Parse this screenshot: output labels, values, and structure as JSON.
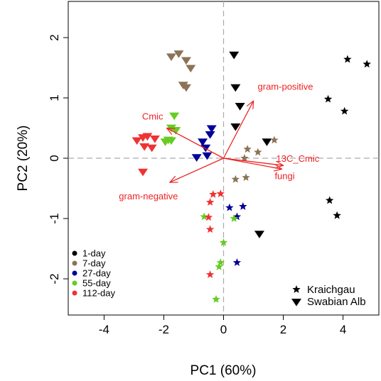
{
  "chart_data": {
    "type": "scatter",
    "title": "",
    "xlabel": "PC1 (60%)",
    "ylabel": "PC2 (20%)",
    "xlim": [
      -5.2,
      5.2
    ],
    "ylim": [
      -2.6,
      2.6
    ],
    "x_ticks": [
      "-4",
      "-2",
      "0",
      "2",
      "4"
    ],
    "x_tick_values": [
      -4,
      -2,
      0,
      2,
      4
    ],
    "y_ticks": [
      "-2",
      "-1",
      "0",
      "1",
      "2"
    ],
    "y_tick_values": [
      -2,
      -1,
      0,
      1,
      2
    ],
    "grid": false,
    "reference_lines": [
      0,
      0
    ],
    "colors": {
      "1-day": "#000000",
      "7-day": "#8b7355",
      "27-day": "#000099",
      "55-day": "#66cc22",
      "112-day": "#ee3333",
      "arrow": "#ee2222",
      "reference": "#aaaaaa"
    },
    "legend_time": {
      "placement": "bottom-left",
      "entries": [
        "1-day",
        "7-day",
        "27-day",
        "55-day",
        "112-day"
      ]
    },
    "legend_site": {
      "placement": "bottom-right",
      "entries": [
        {
          "label": "Kraichgau",
          "shape": "star"
        },
        {
          "label": "Swabian Alb",
          "shape": "triangle-down"
        }
      ]
    },
    "series": [
      {
        "group": "1-day",
        "site": "Kraichgau",
        "points": [
          [
            4.15,
            1.64
          ],
          [
            4.8,
            1.56
          ],
          [
            3.5,
            0.98
          ],
          [
            4.05,
            0.78
          ],
          [
            3.55,
            -0.7
          ],
          [
            3.8,
            -0.95
          ]
        ]
      },
      {
        "group": "1-day",
        "site": "Swabian Alb",
        "points": [
          [
            0.35,
            1.72
          ],
          [
            0.4,
            1.18
          ],
          [
            0.55,
            0.87
          ],
          [
            0.4,
            0.53
          ],
          [
            1.45,
            0.28
          ],
          [
            1.2,
            -1.25
          ]
        ]
      },
      {
        "group": "7-day",
        "site": "Kraichgau",
        "points": [
          [
            1.7,
            0.3
          ],
          [
            0.8,
            0.15
          ],
          [
            1.15,
            0.1
          ],
          [
            0.7,
            0.0
          ],
          [
            0.4,
            -0.35
          ],
          [
            0.75,
            -0.32
          ]
        ]
      },
      {
        "group": "7-day",
        "site": "Swabian Alb",
        "points": [
          [
            -1.75,
            1.69
          ],
          [
            -1.5,
            1.74
          ],
          [
            -1.25,
            1.63
          ],
          [
            -1.1,
            1.5
          ],
          [
            -1.35,
            1.22
          ],
          [
            -1.25,
            1.18
          ]
        ]
      },
      {
        "group": "27-day",
        "site": "Kraichgau",
        "points": [
          [
            0.2,
            -0.82
          ],
          [
            0.65,
            -0.8
          ],
          [
            0.45,
            -0.97
          ],
          [
            0.45,
            -1.73
          ]
        ]
      },
      {
        "group": "27-day",
        "site": "Swabian Alb",
        "points": [
          [
            -0.4,
            0.5
          ],
          [
            -0.45,
            0.4
          ],
          [
            -0.7,
            0.28
          ],
          [
            -0.6,
            0.18
          ],
          [
            -0.9,
            0.02
          ],
          [
            -0.55,
            0.05
          ]
        ]
      },
      {
        "group": "55-day",
        "site": "Kraichgau",
        "points": [
          [
            -0.65,
            -0.97
          ],
          [
            0.35,
            -1.0
          ],
          [
            0.0,
            -1.4
          ],
          [
            -0.1,
            -1.73
          ],
          [
            -0.15,
            -1.8
          ],
          [
            -0.25,
            -2.34
          ]
        ]
      },
      {
        "group": "55-day",
        "site": "Swabian Alb",
        "points": [
          [
            -1.65,
            0.71
          ],
          [
            -1.75,
            0.51
          ],
          [
            -1.6,
            0.47
          ],
          [
            -1.85,
            0.31
          ],
          [
            -1.95,
            0.28
          ],
          [
            -1.75,
            0.3
          ]
        ]
      },
      {
        "group": "112-day",
        "site": "Kraichgau",
        "points": [
          [
            -0.1,
            -0.59
          ],
          [
            -0.35,
            -0.6
          ],
          [
            -0.45,
            -0.73
          ],
          [
            -0.5,
            -0.98
          ],
          [
            -0.45,
            -1.18
          ],
          [
            -0.45,
            -1.93
          ]
        ]
      },
      {
        "group": "112-day",
        "site": "Swabian Alb",
        "points": [
          [
            -2.7,
            0.35
          ],
          [
            -2.55,
            0.37
          ],
          [
            -2.3,
            0.33
          ],
          [
            -2.9,
            0.3
          ],
          [
            -2.65,
            0.2
          ],
          [
            -2.4,
            0.18
          ],
          [
            -2.7,
            -0.22
          ]
        ]
      }
    ],
    "loadings": [
      {
        "label": "gram-positive",
        "x": 1.0,
        "y": 0.95
      },
      {
        "label": "Cmic",
        "x": -1.9,
        "y": 0.5
      },
      {
        "label": "13C_Cmic",
        "x": 2.0,
        "y": -0.12
      },
      {
        "label": "fungi",
        "x": 1.95,
        "y": -0.18
      },
      {
        "label": "gram-negative",
        "x": -1.8,
        "y": -0.4
      }
    ]
  }
}
